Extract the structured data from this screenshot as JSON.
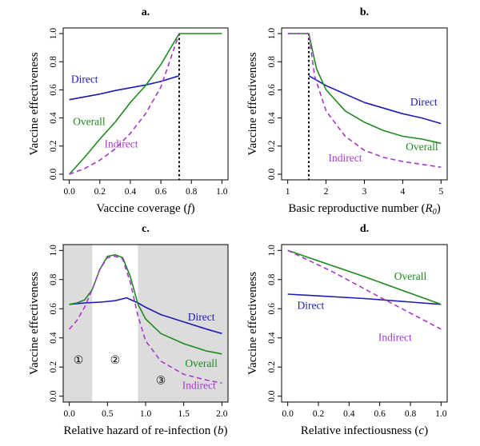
{
  "colors": {
    "direct": "#1c1cb4",
    "overall": "#1f8a1f",
    "indirect": "#a63ac9",
    "shade": "#dcdcdc",
    "axis": "#000000"
  },
  "chart_data": [
    {
      "id": "a",
      "type": "line",
      "panel_label": "a.",
      "xlabel": "Vaccine coverage (",
      "xlabel_var": "f",
      "xlabel_close": ")",
      "ylabel": "Vaccine effectiveness",
      "xlim": [
        0,
        1
      ],
      "ylim": [
        0,
        1
      ],
      "xticks": [
        0,
        0.2,
        0.4,
        0.6,
        0.8,
        1
      ],
      "xtick_labels": [
        "0.0",
        "0.2",
        "0.4",
        "0.6",
        "0.8",
        "1.0"
      ],
      "yticks": [
        0,
        0.2,
        0.4,
        0.6,
        0.8,
        1
      ],
      "ytick_labels": [
        "0.0",
        "0.2",
        "0.4",
        "0.6",
        "0.8",
        "1.0"
      ],
      "vline": 0.72,
      "series": [
        {
          "name": "Direct",
          "key": "direct",
          "dashed": false,
          "x": [
            0,
            0.1,
            0.2,
            0.3,
            0.4,
            0.5,
            0.6,
            0.72
          ],
          "y": [
            0.53,
            0.55,
            0.57,
            0.595,
            0.615,
            0.635,
            0.66,
            0.7
          ]
        },
        {
          "name": "Overall",
          "key": "overall",
          "dashed": false,
          "x": [
            0,
            0.1,
            0.2,
            0.3,
            0.4,
            0.5,
            0.6,
            0.72,
            0.8,
            1.0
          ],
          "y": [
            0,
            0.12,
            0.25,
            0.37,
            0.51,
            0.63,
            0.78,
            1.0,
            1.0,
            1.0
          ]
        },
        {
          "name": "Indirect",
          "key": "indirect",
          "dashed": true,
          "x": [
            0,
            0.1,
            0.2,
            0.3,
            0.4,
            0.5,
            0.6,
            0.72
          ],
          "y": [
            0,
            0.04,
            0.1,
            0.18,
            0.29,
            0.43,
            0.62,
            1.0
          ]
        }
      ],
      "annotations": [
        {
          "key": "direct",
          "text": "Direct",
          "x": 0.1,
          "y": 0.65
        },
        {
          "key": "overall",
          "text": "Overall",
          "x": 0.13,
          "y": 0.35
        },
        {
          "key": "indirect",
          "text": "Indirect",
          "x": 0.34,
          "y": 0.19
        }
      ]
    },
    {
      "id": "b",
      "type": "line",
      "panel_label": "b.",
      "xlabel": "Basic reproductive number (",
      "xlabel_var": "R",
      "xlabel_sub": "0",
      "xlabel_close": ")",
      "ylabel": "Vaccine effectiveness",
      "xlim": [
        1,
        5
      ],
      "ylim": [
        0,
        1
      ],
      "xticks": [
        1,
        2,
        3,
        4,
        5
      ],
      "xtick_labels": [
        "1",
        "2",
        "3",
        "4",
        "5"
      ],
      "yticks": [
        0,
        0.2,
        0.4,
        0.6,
        0.8,
        1
      ],
      "ytick_labels": [
        "0.0",
        "0.2",
        "0.4",
        "0.6",
        "0.8",
        "1.0"
      ],
      "vline": 1.55,
      "series": [
        {
          "name": "Direct",
          "key": "direct",
          "dashed": false,
          "x": [
            1.55,
            2,
            2.5,
            3,
            3.5,
            4,
            4.5,
            5
          ],
          "y": [
            0.7,
            0.63,
            0.57,
            0.51,
            0.47,
            0.43,
            0.4,
            0.36
          ]
        },
        {
          "name": "Overall",
          "key": "overall",
          "dashed": false,
          "x": [
            1,
            1.55,
            1.75,
            2,
            2.5,
            3,
            3.5,
            4,
            4.5,
            5
          ],
          "y": [
            1.0,
            1.0,
            0.75,
            0.6,
            0.45,
            0.37,
            0.31,
            0.27,
            0.25,
            0.22
          ]
        },
        {
          "name": "Indirect",
          "key": "indirect",
          "dashed": true,
          "x": [
            1,
            1.55,
            1.7,
            2,
            2.5,
            3,
            3.5,
            4,
            4.5,
            5
          ],
          "y": [
            1.0,
            1.0,
            0.7,
            0.45,
            0.27,
            0.17,
            0.12,
            0.09,
            0.07,
            0.05
          ]
        }
      ],
      "annotations": [
        {
          "key": "direct",
          "text": "Direct",
          "x": 4.55,
          "y": 0.49
        },
        {
          "key": "overall",
          "text": "Overall",
          "x": 4.5,
          "y": 0.17
        },
        {
          "key": "indirect",
          "text": "Indirect",
          "x": 2.5,
          "y": 0.09
        }
      ]
    },
    {
      "id": "c",
      "type": "line",
      "panel_label": "c.",
      "xlabel": "Relative hazard of re-infection (",
      "xlabel_var": "b",
      "xlabel_close": ")",
      "ylabel": "Vaccine effectiveness",
      "xlim": [
        0,
        2
      ],
      "ylim": [
        0,
        1
      ],
      "xticks": [
        0,
        0.5,
        1,
        1.5,
        2
      ],
      "xtick_labels": [
        "0.0",
        "0.5",
        "1.0",
        "1.5",
        "2.0"
      ],
      "yticks": [
        0,
        0.2,
        0.4,
        0.6,
        0.8,
        1
      ],
      "ytick_labels": [
        "0.0",
        "0.2",
        "0.4",
        "0.6",
        "0.8",
        "1.0"
      ],
      "shaded_x": [
        [
          -0.08,
          0.3
        ],
        [
          0.9,
          2.08
        ]
      ],
      "series": [
        {
          "name": "Direct",
          "key": "direct",
          "dashed": false,
          "x": [
            0,
            0.2,
            0.4,
            0.6,
            0.75,
            0.9,
            1.0,
            1.2,
            1.5,
            1.8,
            2.0
          ],
          "y": [
            0.63,
            0.64,
            0.645,
            0.655,
            0.675,
            0.64,
            0.61,
            0.56,
            0.51,
            0.46,
            0.43
          ]
        },
        {
          "name": "Overall",
          "key": "overall",
          "dashed": false,
          "x": [
            0,
            0.1,
            0.2,
            0.3,
            0.4,
            0.5,
            0.6,
            0.7,
            0.8,
            0.9,
            1.0,
            1.2,
            1.5,
            1.8,
            2.0
          ],
          "y": [
            0.63,
            0.64,
            0.66,
            0.73,
            0.87,
            0.96,
            0.97,
            0.95,
            0.82,
            0.63,
            0.53,
            0.43,
            0.36,
            0.31,
            0.29
          ]
        },
        {
          "name": "Indirect",
          "key": "indirect",
          "dashed": true,
          "x": [
            0,
            0.1,
            0.2,
            0.3,
            0.4,
            0.5,
            0.6,
            0.7,
            0.8,
            0.9,
            1.0,
            1.2,
            1.5,
            1.8,
            2.0
          ],
          "y": [
            0.46,
            0.52,
            0.61,
            0.73,
            0.87,
            0.95,
            0.96,
            0.94,
            0.78,
            0.55,
            0.38,
            0.24,
            0.15,
            0.11,
            0.09
          ]
        }
      ],
      "annotations": [
        {
          "key": "direct",
          "text": "Direct",
          "x": 1.73,
          "y": 0.52
        },
        {
          "key": "overall",
          "text": "Overall",
          "x": 1.73,
          "y": 0.2
        },
        {
          "key": "indirect",
          "text": "Indirect",
          "x": 1.7,
          "y": 0.05
        }
      ],
      "region_markers": [
        {
          "text": "①",
          "x": 0.12,
          "y": 0.25
        },
        {
          "text": "②",
          "x": 0.6,
          "y": 0.25
        },
        {
          "text": "③",
          "x": 1.2,
          "y": 0.11
        }
      ]
    },
    {
      "id": "d",
      "type": "line",
      "panel_label": "d.",
      "xlabel": "Relative infectiousness (",
      "xlabel_var": "c",
      "xlabel_close": ")",
      "ylabel": "Vaccine effectiveness",
      "xlim": [
        0,
        1
      ],
      "ylim": [
        0,
        1
      ],
      "xticks": [
        0,
        0.2,
        0.4,
        0.6,
        0.8,
        1
      ],
      "xtick_labels": [
        "0.0",
        "0.2",
        "0.4",
        "0.6",
        "0.8",
        "1.0"
      ],
      "yticks": [
        0,
        0.2,
        0.4,
        0.6,
        0.8,
        1
      ],
      "ytick_labels": [
        "0.0",
        "0.2",
        "0.4",
        "0.6",
        "0.8",
        "1.0"
      ],
      "series": [
        {
          "name": "Direct",
          "key": "direct",
          "dashed": false,
          "x": [
            0,
            0.5,
            1.0
          ],
          "y": [
            0.7,
            0.67,
            0.63
          ]
        },
        {
          "name": "Overall",
          "key": "overall",
          "dashed": false,
          "x": [
            0,
            0.5,
            1.0
          ],
          "y": [
            1.0,
            0.82,
            0.63
          ]
        },
        {
          "name": "Indirect",
          "key": "indirect",
          "dashed": true,
          "x": [
            0,
            0.3,
            0.6,
            1.0
          ],
          "y": [
            1.0,
            0.85,
            0.68,
            0.46
          ]
        }
      ],
      "annotations": [
        {
          "key": "direct",
          "text": "Direct",
          "x": 0.15,
          "y": 0.6
        },
        {
          "key": "overall",
          "text": "Overall",
          "x": 0.8,
          "y": 0.8
        },
        {
          "key": "indirect",
          "text": "Indirect",
          "x": 0.7,
          "y": 0.38
        }
      ]
    }
  ]
}
